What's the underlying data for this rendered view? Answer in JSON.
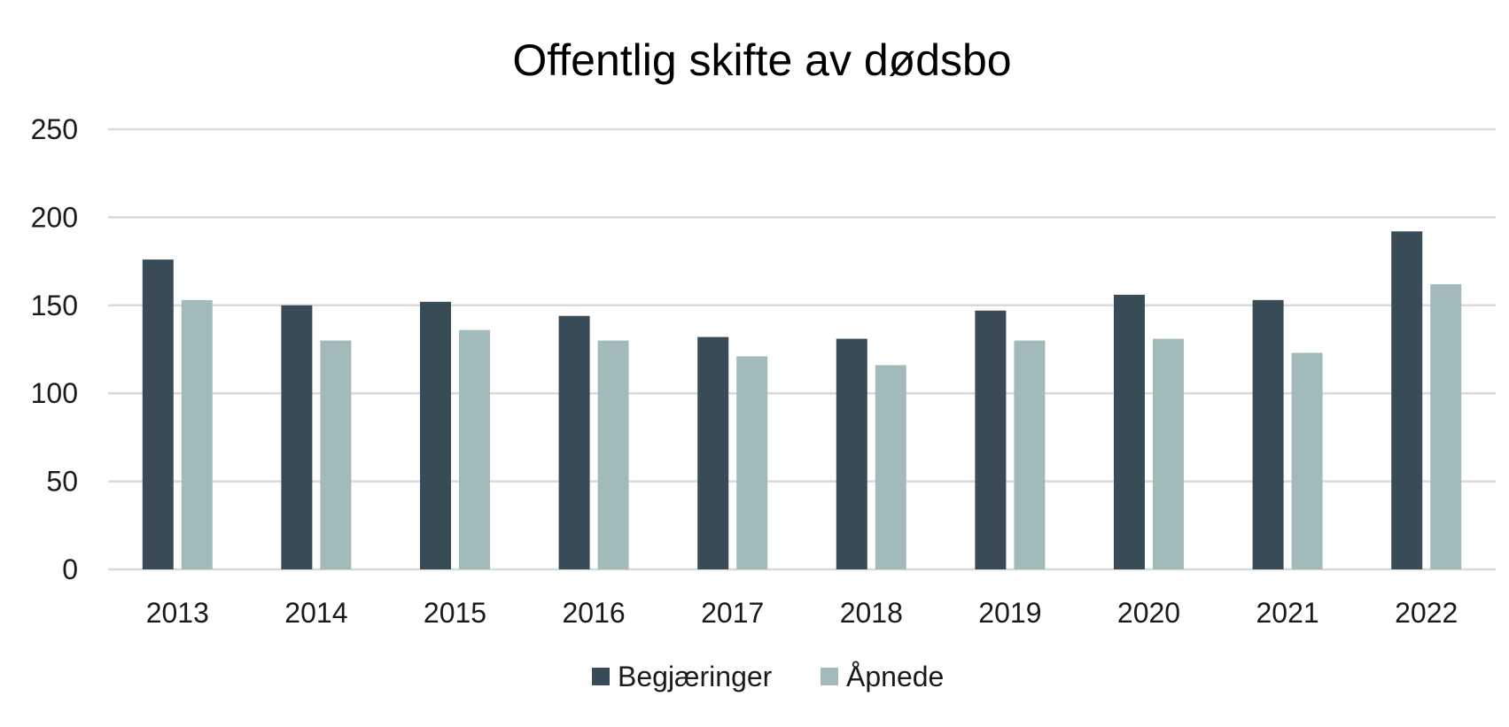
{
  "chart_data": {
    "type": "bar",
    "title": "Offentlig skifte av dødsbo",
    "xlabel": "",
    "ylabel": "",
    "ylim": [
      0,
      250
    ],
    "yticks": [
      0,
      50,
      100,
      150,
      200,
      250
    ],
    "grid": true,
    "legend_position": "bottom",
    "categories": [
      "2013",
      "2014",
      "2015",
      "2016",
      "2017",
      "2018",
      "2019",
      "2020",
      "2021",
      "2022"
    ],
    "series": [
      {
        "name": "Begjæringer",
        "color": "#3a4b58",
        "values": [
          176,
          150,
          152,
          144,
          132,
          131,
          147,
          156,
          153,
          192
        ]
      },
      {
        "name": "Åpnede",
        "color": "#a3babb",
        "values": [
          153,
          130,
          136,
          130,
          121,
          116,
          130,
          131,
          123,
          162
        ]
      }
    ]
  }
}
